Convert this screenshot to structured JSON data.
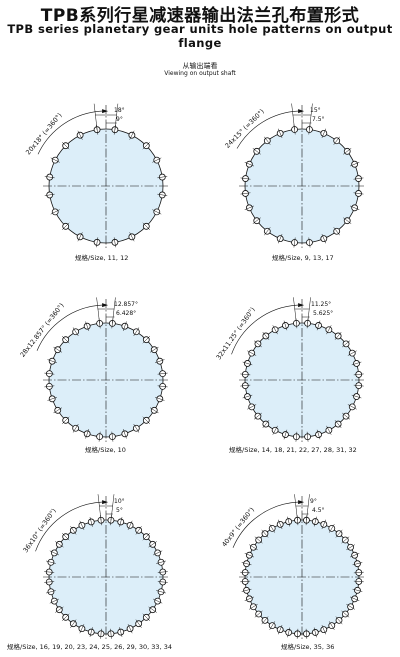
{
  "header": {
    "title_cn": "TPB系列行星减速器输出法兰孔布置形式",
    "title_en": "TPB series planetary gear units hole patterns on output flange",
    "view_cn": "从输出端看",
    "view_en": "Viewing on output shaft"
  },
  "patterns": [
    {
      "holes": 20,
      "pitch_label": "20x18° (=360°)",
      "angle1": "18°",
      "angle2": "9°",
      "caption": "规格/Size, 11, 12"
    },
    {
      "holes": 24,
      "pitch_label": "24x15° (=360°)",
      "angle1": "15°",
      "angle2": "7.5°",
      "caption": "规格/Size, 9, 13, 17"
    },
    {
      "holes": 28,
      "pitch_label": "28x12.857° (=360°)",
      "angle1": "12.857°",
      "angle2": "6.428°",
      "caption": "规格/Size, 10"
    },
    {
      "holes": 32,
      "pitch_label": "32x11.25° (=360°)",
      "angle1": "11.25°",
      "angle2": "5.625°",
      "caption": "规格/Size, 14, 18, 21, 22, 27, 28, 31, 32"
    },
    {
      "holes": 36,
      "pitch_label": "36x10° (=360°)",
      "angle1": "10°",
      "angle2": "5°",
      "caption": "规格/Size, 16, 19, 20, 23, 24, 25, 26, 29, 30, 33, 34"
    },
    {
      "holes": 40,
      "pitch_label": "40x9° (=360°)",
      "angle1": "9°",
      "angle2": "4.5°",
      "caption": "规格/Size, 35, 36"
    }
  ],
  "colors": {
    "disk_fill": "#dceef9",
    "line": "#111111"
  }
}
